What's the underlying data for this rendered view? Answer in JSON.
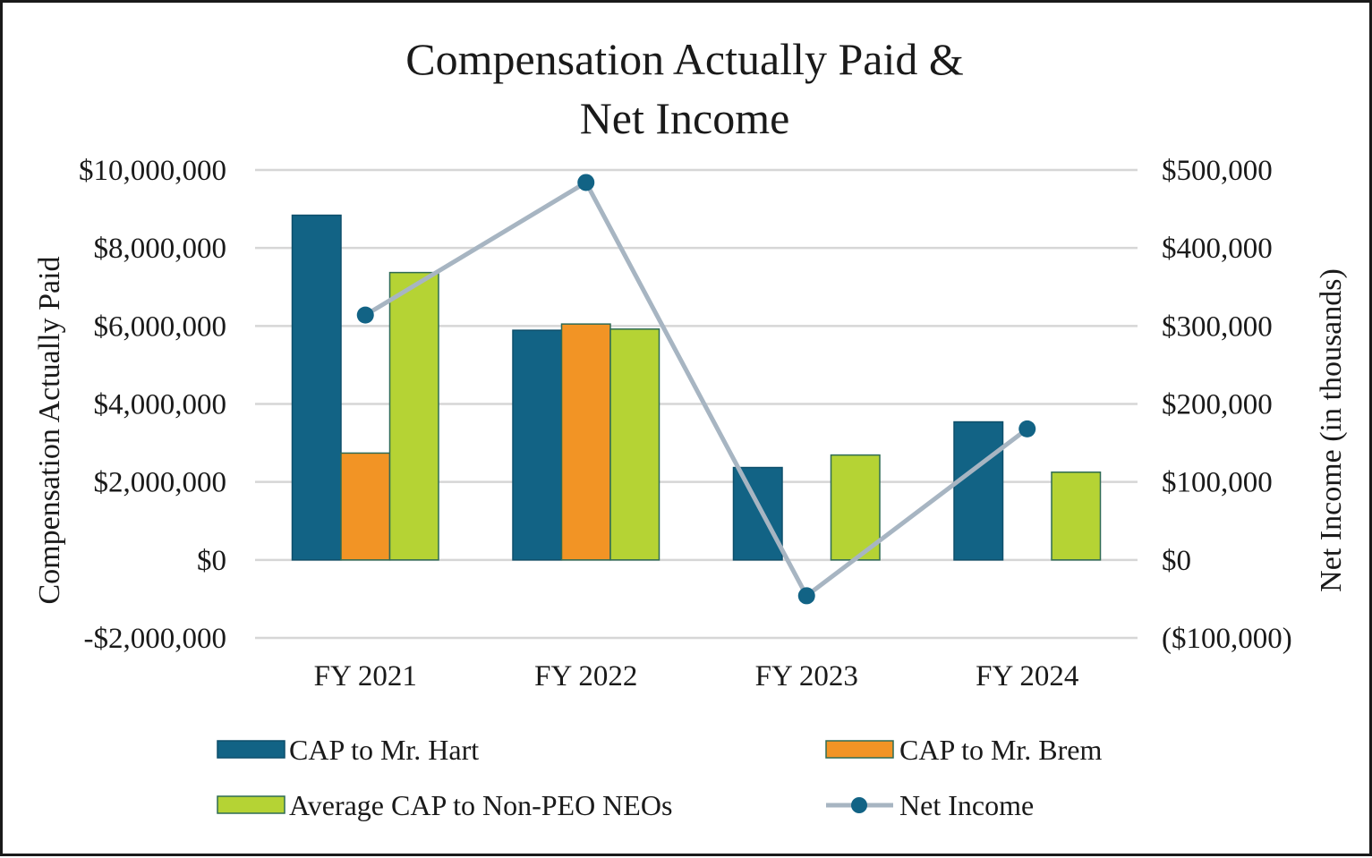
{
  "chart_data": {
    "type": "bar",
    "title_lines": [
      "Compensation Actually Paid &",
      "Net Income"
    ],
    "categories": [
      "FY 2021",
      "FY 2022",
      "FY 2023",
      "FY 2024"
    ],
    "ylabel": "Compensation Actually Paid",
    "y2label": "Net Income (in thousands)",
    "ylim": [
      -2000000,
      10000000
    ],
    "y2lim": [
      -100000,
      500000
    ],
    "yticks": [
      {
        "value": 10000000,
        "label": "$10,000,000"
      },
      {
        "value": 8000000,
        "label": "$8,000,000"
      },
      {
        "value": 6000000,
        "label": "$6,000,000"
      },
      {
        "value": 4000000,
        "label": "$4,000,000"
      },
      {
        "value": 2000000,
        "label": "$2,000,000"
      },
      {
        "value": 0,
        "label": "$0"
      },
      {
        "value": -2000000,
        "label": "-$2,000,000"
      }
    ],
    "y2ticks": [
      {
        "value": 500000,
        "label": "$500,000"
      },
      {
        "value": 400000,
        "label": "$400,000"
      },
      {
        "value": 300000,
        "label": "$300,000"
      },
      {
        "value": 200000,
        "label": "$200,000"
      },
      {
        "value": 100000,
        "label": "$100,000"
      },
      {
        "value": 0,
        "label": "$0"
      },
      {
        "value": -100000,
        "label": "($100,000)"
      }
    ],
    "grid": true,
    "series": [
      {
        "name": "CAP to Mr. Hart",
        "kind": "bar",
        "color": "#126385",
        "values": [
          8840000,
          5890000,
          2370000,
          3540000
        ]
      },
      {
        "name": "CAP to Mr. Brem",
        "kind": "bar",
        "color": "#f29425",
        "values": [
          2740000,
          6050000,
          null,
          null
        ]
      },
      {
        "name": "Average CAP to Non-PEO NEOs",
        "kind": "bar",
        "color": "#b5d334",
        "values": [
          7370000,
          5920000,
          2690000,
          2250000
        ]
      },
      {
        "name": "Net Income",
        "kind": "line",
        "axis": "right",
        "color": "#a7b5c2",
        "marker_color": "#126385",
        "values": [
          314000,
          484000,
          -46000,
          168000
        ]
      }
    ],
    "legend_position": "bottom"
  }
}
